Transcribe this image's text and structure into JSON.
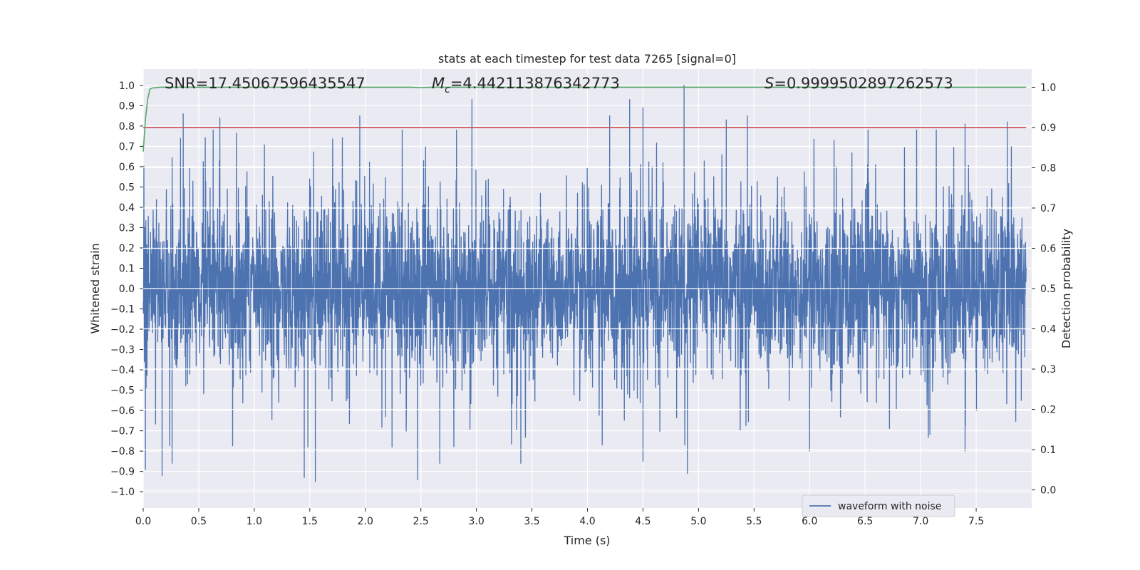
{
  "chart_data": {
    "type": "line",
    "title": "stats at each timestep for test data 7265 [signal=0]",
    "xlabel": "Time (s)",
    "ylabel": "Whitened strain",
    "y2label": "Detection probability",
    "xlim": [
      0.0,
      8.0
    ],
    "ylim": [
      -1.08,
      1.08
    ],
    "y2lim": [
      -0.045,
      1.045
    ],
    "grid": true,
    "legend_position": "bottom-right",
    "x_ticks": [
      "0.0",
      "0.5",
      "1.0",
      "1.5",
      "2.0",
      "2.5",
      "3.0",
      "3.5",
      "4.0",
      "4.5",
      "5.0",
      "5.5",
      "6.0",
      "6.5",
      "7.0",
      "7.5"
    ],
    "y_ticks": [
      "1.0",
      "0.9",
      "0.8",
      "0.7",
      "0.6",
      "0.5",
      "0.4",
      "0.3",
      "0.2",
      "0.1",
      "0.0",
      "−0.1",
      "−0.2",
      "−0.3",
      "−0.4",
      "−0.5",
      "−0.6",
      "−0.7",
      "−0.8",
      "−0.9",
      "−1.0"
    ],
    "y2_ticks": [
      "1.0",
      "0.9",
      "0.8",
      "0.7",
      "0.6",
      "0.5",
      "0.4",
      "0.3",
      "0.2",
      "0.1",
      "0.0"
    ],
    "annotations": {
      "snr": "SNR=17.45067596435547",
      "mc_symbol": "M",
      "mc_sub": "c",
      "mc_value": "=4.442113876342773",
      "s_symbol": "S",
      "s_value": "=0.9999502897262573"
    },
    "series": [
      {
        "name": "waveform with noise",
        "axis": "left",
        "color": "#4c72b0",
        "description": "whitened strain noise, dense oscillation between about -0.95 and 1.0",
        "envelope_peaks": [
          {
            "x": 0.36,
            "y": 0.86
          },
          {
            "x": 0.63,
            "y": 0.78
          },
          {
            "x": 0.69,
            "y": 0.84
          },
          {
            "x": 1.95,
            "y": 0.85
          },
          {
            "x": 2.96,
            "y": 0.93
          },
          {
            "x": 4.2,
            "y": 0.85
          },
          {
            "x": 4.38,
            "y": 0.93
          },
          {
            "x": 4.5,
            "y": 0.89
          },
          {
            "x": 4.87,
            "y": 1.0
          },
          {
            "x": 5.25,
            "y": 0.83
          },
          {
            "x": 5.44,
            "y": 0.85
          },
          {
            "x": 7.4,
            "y": 0.81
          },
          {
            "x": 7.78,
            "y": 0.82
          }
        ],
        "envelope_troughs": [
          {
            "x": 0.02,
            "y": -0.89
          },
          {
            "x": 0.17,
            "y": -0.92
          },
          {
            "x": 0.26,
            "y": -0.86
          },
          {
            "x": 1.45,
            "y": -0.93
          },
          {
            "x": 1.55,
            "y": -0.95
          },
          {
            "x": 2.47,
            "y": -0.94
          },
          {
            "x": 2.67,
            "y": -0.86
          },
          {
            "x": 3.4,
            "y": -0.86
          },
          {
            "x": 4.5,
            "y": -0.85
          },
          {
            "x": 4.9,
            "y": -0.91
          },
          {
            "x": 6.0,
            "y": -0.8
          },
          {
            "x": 7.4,
            "y": -0.8
          }
        ]
      },
      {
        "name": "detection probability",
        "axis": "right",
        "color": "#55a868",
        "x": [
          0.0,
          0.02,
          0.04,
          0.06,
          0.08,
          0.15,
          2.4,
          2.5,
          2.6,
          7.95
        ],
        "y": [
          0.84,
          0.92,
          0.97,
          0.995,
          0.998,
          1.0,
          1.0,
          0.999,
          1.0,
          1.0
        ]
      },
      {
        "name": "threshold",
        "axis": "right",
        "color": "#c44e52",
        "x": [
          0.0,
          7.95
        ],
        "y": [
          0.9,
          0.9
        ]
      }
    ],
    "legend": [
      "waveform with noise"
    ]
  }
}
